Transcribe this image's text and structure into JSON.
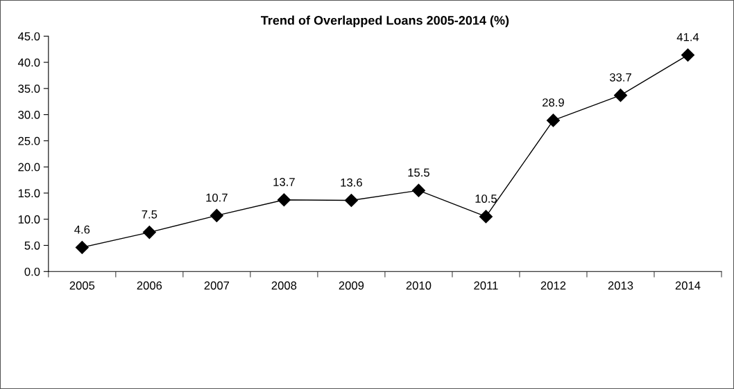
{
  "chart_data": {
    "type": "line",
    "title": "Trend of Overlapped Loans 2005-2014 (%)",
    "categories": [
      "2005",
      "2006",
      "2007",
      "2008",
      "2009",
      "2010",
      "2011",
      "2012",
      "2013",
      "2014"
    ],
    "series": [
      {
        "color": "#000000",
        "values": [
          4.6,
          7.5,
          10.7,
          13.7,
          13.6,
          15.5,
          10.5,
          28.9,
          33.7,
          41.4
        ]
      }
    ],
    "ylim": [
      0,
      45
    ],
    "yticks": [
      {
        "value": 0,
        "label": "0.0"
      },
      {
        "value": 5,
        "label": "5.0"
      },
      {
        "value": 10,
        "label": "10.0"
      },
      {
        "value": 15,
        "label": "15.0"
      },
      {
        "value": 20,
        "label": "20.0"
      },
      {
        "value": 25,
        "label": "25.0"
      },
      {
        "value": 30,
        "label": "30.0"
      },
      {
        "value": 35,
        "label": "35.0"
      },
      {
        "value": 40,
        "label": "40.0"
      },
      {
        "value": 45,
        "label": "45.0"
      }
    ],
    "data_labels": true,
    "marker": "diamond",
    "line_style": "solid"
  }
}
